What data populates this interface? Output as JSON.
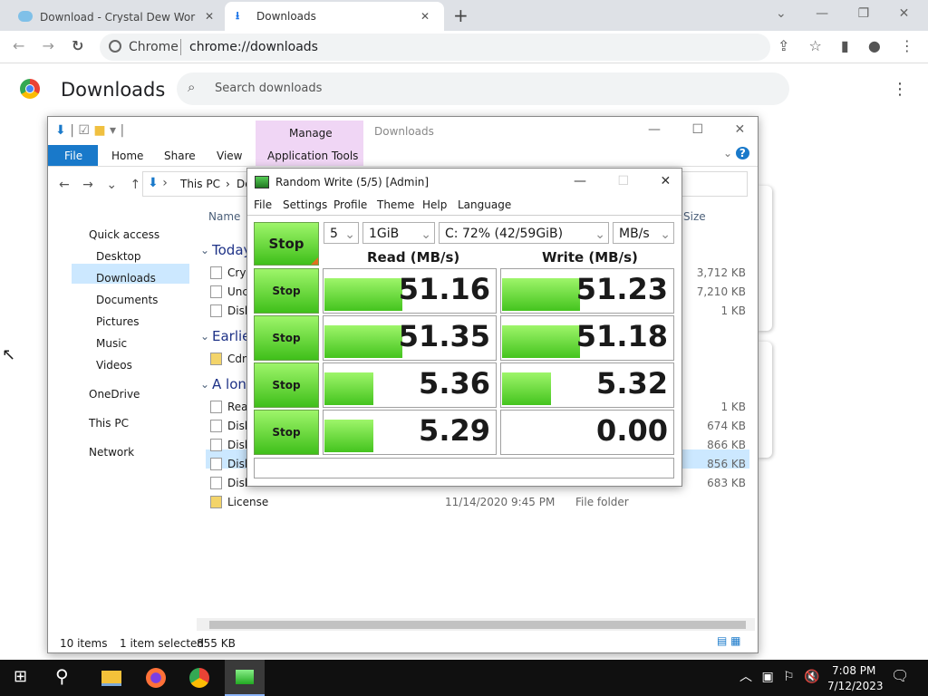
{
  "browser": {
    "tabs": [
      "Download - Crystal Dew World [e",
      "Downloads"
    ],
    "address": {
      "site": "Chrome",
      "url": "chrome://downloads"
    },
    "page": {
      "title": "Downloads",
      "search": "Search downloads"
    }
  },
  "explorer": {
    "ribbon": {
      "context": "Manage",
      "title": "Downloads",
      "tabs": [
        "File",
        "Home",
        "Share",
        "View",
        "Application Tools"
      ]
    },
    "path": [
      "This PC",
      "Do"
    ],
    "nav": [
      "Quick access",
      "Desktop",
      "Downloads",
      "Documents",
      "Pictures",
      "Music",
      "Videos",
      "OneDrive",
      "This PC",
      "Network"
    ],
    "columns": {
      "name": "Name",
      "size": "Size"
    },
    "groups": [
      {
        "label": "Today",
        "files": [
          {
            "name": "Crys",
            "size": "3,712 KB"
          },
          {
            "name": "Unc",
            "size": "7,210 KB"
          },
          {
            "name": "Disk",
            "size": "1 KB"
          }
        ]
      },
      {
        "label": "Earlie",
        "files": [
          {
            "name": "Cdm"
          }
        ]
      },
      {
        "label": "A long",
        "files": [
          {
            "name": "Read",
            "size": "1 KB"
          },
          {
            "name": "Disk",
            "size": "674 KB"
          },
          {
            "name": "Disk",
            "size": "866 KB"
          },
          {
            "name": "Disk",
            "size": "856 KB"
          },
          {
            "name": "Disk",
            "size": "683 KB"
          },
          {
            "name": "License",
            "date": "11/14/2020 9:45 PM",
            "type": "File folder"
          }
        ]
      }
    ],
    "status": {
      "items": "10 items",
      "selected": "1 item selected",
      "size": "855 KB"
    }
  },
  "cdm": {
    "title": "Random Write (5/5) [Admin]",
    "menu": [
      "File",
      "Settings",
      "Profile",
      "Theme",
      "Help",
      "Language"
    ],
    "controls": {
      "button": "Stop",
      "count": "5",
      "size": "1GiB",
      "drive": "C: 72% (42/59GiB)",
      "unit": "MB/s"
    },
    "headers": {
      "read": "Read (MB/s)",
      "write": "Write (MB/s)"
    },
    "rows": [
      {
        "button": "Stop",
        "read": "51.16",
        "write": "51.23"
      },
      {
        "button": "Stop",
        "read": "51.35",
        "write": "51.18"
      },
      {
        "button": "Stop",
        "read": "5.36",
        "write": "5.32"
      },
      {
        "button": "Stop",
        "read": "5.29",
        "write": "0.00"
      }
    ]
  },
  "taskbar": {
    "time": "7:08 PM",
    "date": "7/12/2023"
  }
}
